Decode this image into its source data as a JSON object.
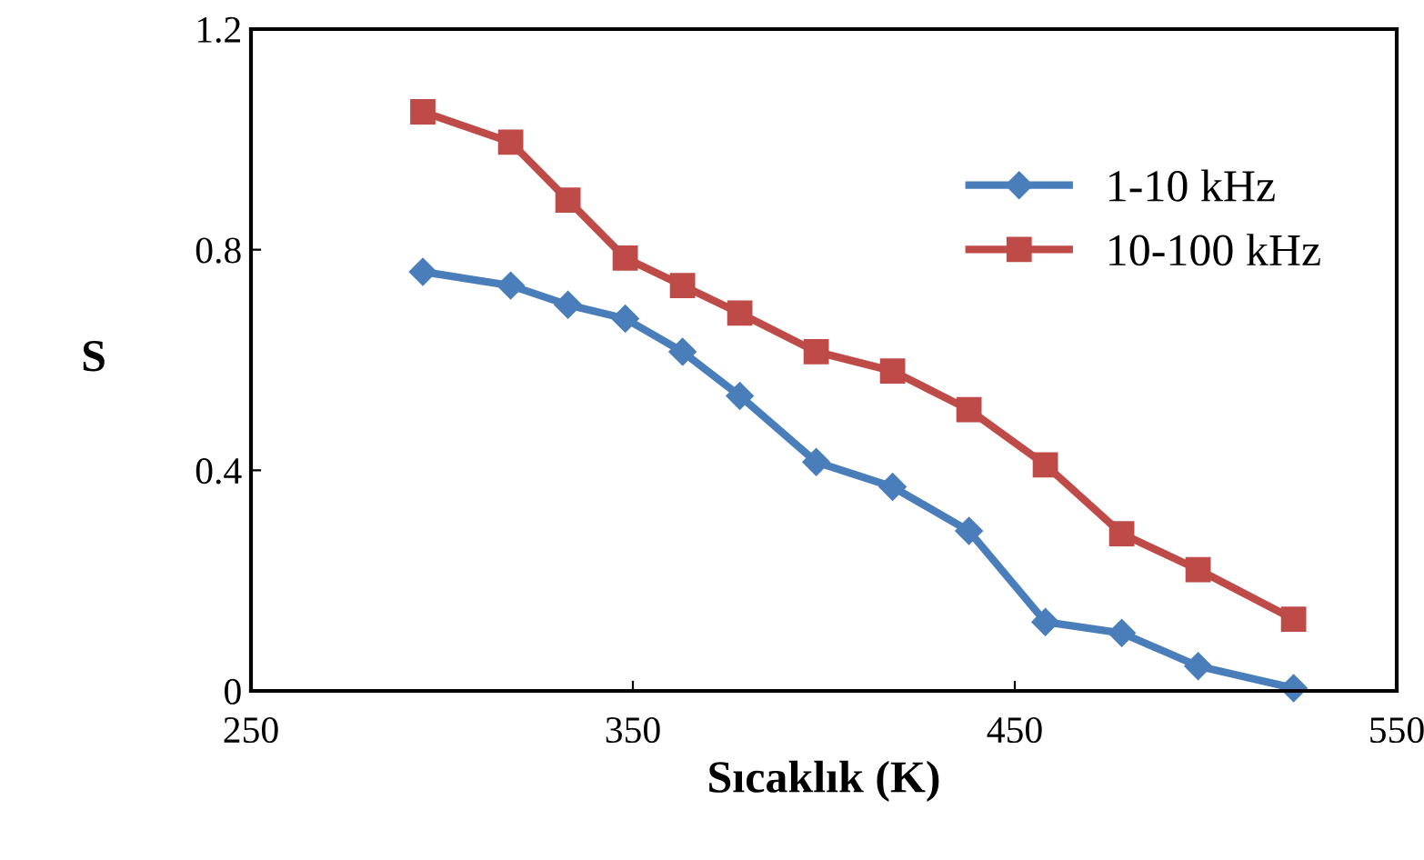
{
  "chart_data": {
    "type": "line",
    "xlabel": "Sıcaklık (K)",
    "ylabel": "S",
    "x": [
      295,
      318,
      333,
      348,
      363,
      378,
      398,
      418,
      438,
      458,
      478,
      498,
      523
    ],
    "series": [
      {
        "name": "1-10 kHz",
        "color": "#4a7ebb",
        "marker": "diamond",
        "values": [
          0.76,
          0.735,
          0.7,
          0.675,
          0.615,
          0.535,
          0.415,
          0.37,
          0.29,
          0.125,
          0.105,
          0.045,
          0.005
        ]
      },
      {
        "name": "10-100 kHz",
        "color": "#be4b48",
        "marker": "square",
        "values": [
          1.05,
          0.995,
          0.89,
          0.785,
          0.735,
          0.685,
          0.615,
          0.58,
          0.51,
          0.41,
          0.285,
          0.22,
          0.13
        ]
      }
    ],
    "xlim": [
      250,
      550
    ],
    "xticks": [
      250,
      350,
      450,
      550
    ],
    "ylim": [
      0,
      1.2
    ],
    "yticks": [
      0,
      0.4,
      0.8,
      1.2
    ],
    "grid": false,
    "legend": "top right",
    "line_style": "solid"
  }
}
